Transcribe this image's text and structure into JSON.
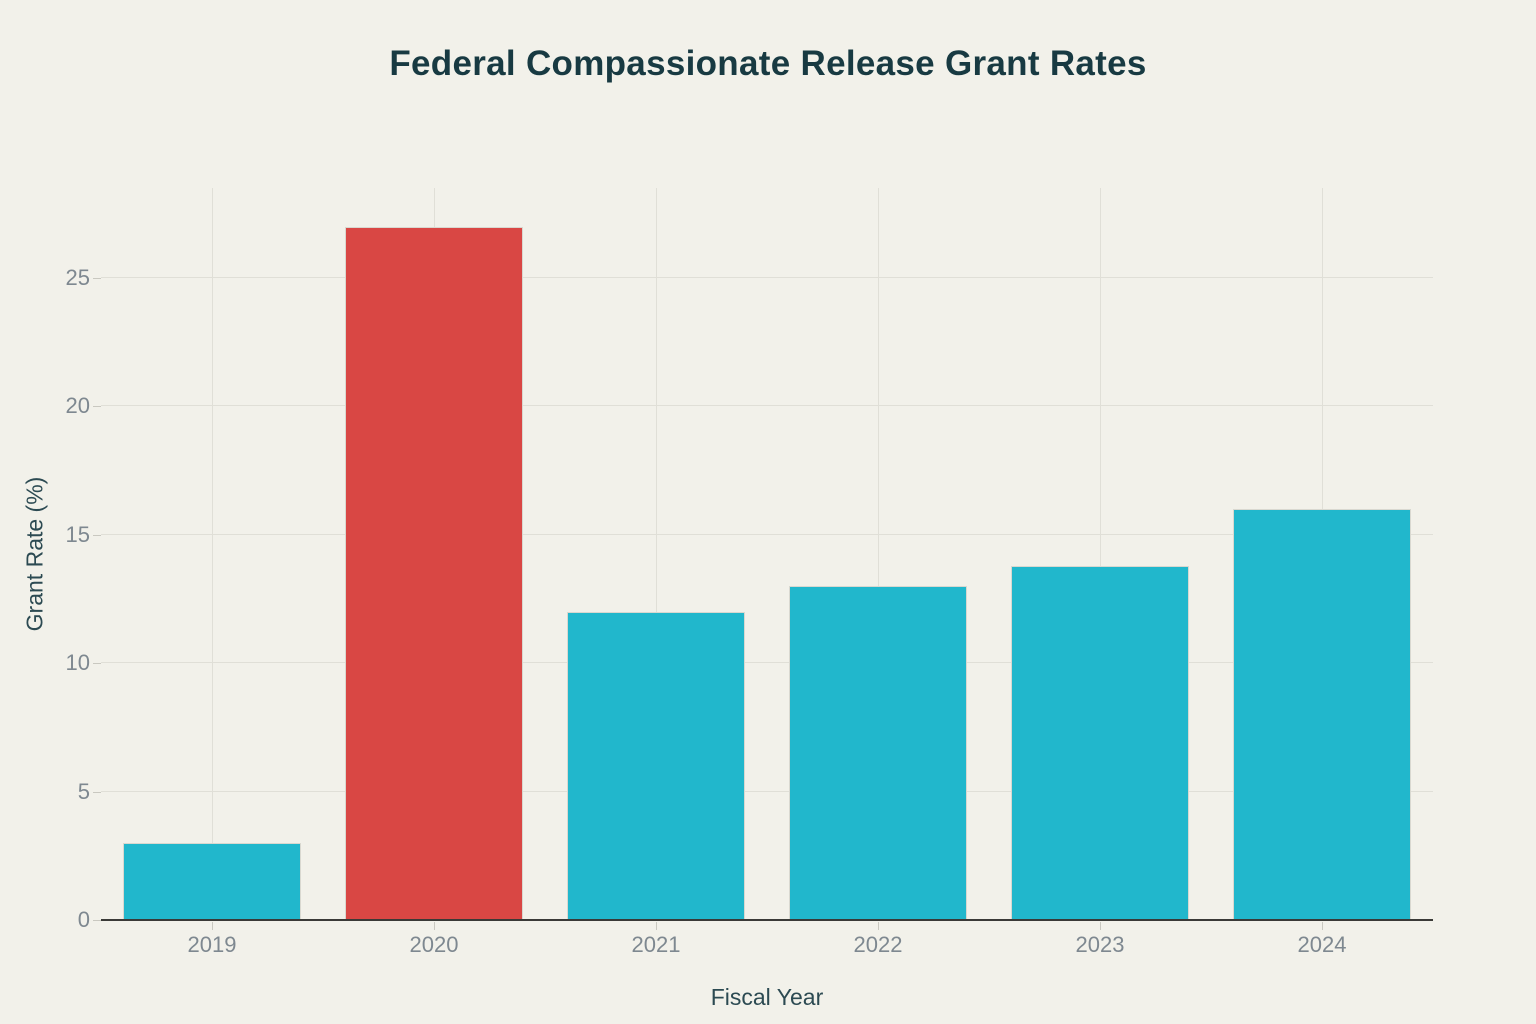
{
  "chart_data": {
    "type": "bar",
    "title": "Federal Compassionate Release Grant Rates",
    "xlabel": "Fiscal Year",
    "ylabel": "Grant Rate (%)",
    "categories": [
      "2019",
      "2020",
      "2021",
      "2022",
      "2023",
      "2024"
    ],
    "series": [
      {
        "name": "Grant Rate (%)",
        "values": [
          3,
          27,
          12,
          13,
          13.8,
          16
        ],
        "colors": [
          "#21b7cc",
          "#d94744",
          "#21b7cc",
          "#21b7cc",
          "#21b7cc",
          "#21b7cc"
        ]
      }
    ],
    "highlighted_category": "2020",
    "ylim": [
      0,
      28.5
    ],
    "yticks": [
      0,
      5,
      10,
      15,
      20,
      25
    ],
    "grid": true,
    "legend": "none",
    "colors": {
      "background": "#f2f1ea",
      "bar_default": "#21b7cc",
      "bar_highlight": "#d94744",
      "bar_outline": "#d9d8d0",
      "gridline": "#e0dfd7",
      "axis_line": "#3a3a37",
      "tick_mark": "#c9c8c0",
      "tick_label": "#7e8890",
      "title": "#183a42",
      "axis_title": "#2c4a52"
    }
  }
}
